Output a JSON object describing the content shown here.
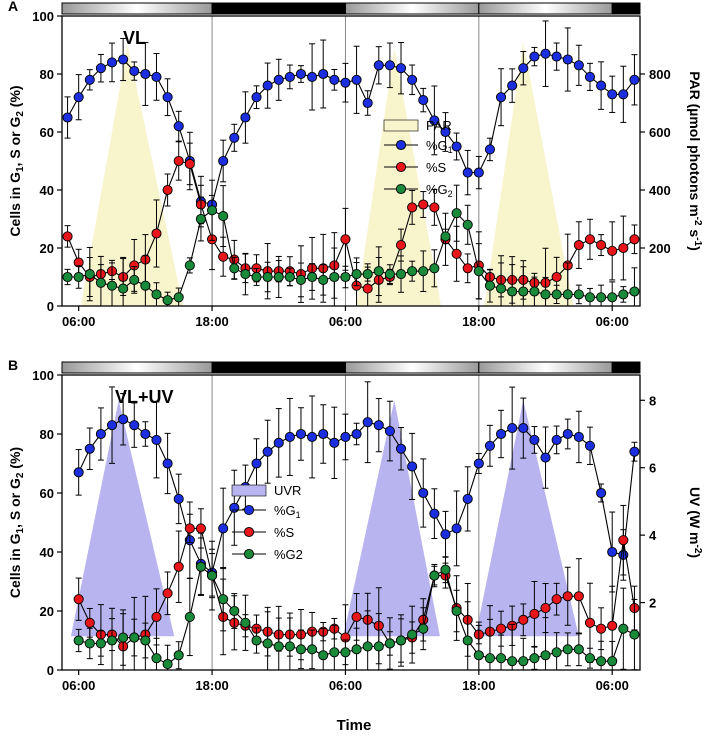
{
  "figure": {
    "xlabel": "Time"
  },
  "chart_data": [
    {
      "panel_label": "A",
      "type": "line",
      "title": "VL",
      "ylabel": "Cells in G1, S or G2 (%)",
      "ylabel_sub": "1",
      "ylabel_sub2": "2",
      "y2label": "PAR (µmol photons m-2 s-1)",
      "y2label_pre": "PAR (µmol photons m",
      "y2label_sup1": "-2",
      "y2label_mid": " s",
      "y2label_sup2": "-1",
      "y2label_post": ")",
      "xlim": [
        4.5,
        56.5
      ],
      "ylim": [
        0,
        100
      ],
      "y2lim": [
        0,
        1000
      ],
      "xticks": [
        6,
        18,
        30,
        42,
        54
      ],
      "xtick_labels": [
        "06:00",
        "18:00",
        "06:00",
        "18:00",
        "06:00"
      ],
      "yticks": [
        0,
        20,
        40,
        60,
        80,
        100
      ],
      "y2ticks": [
        200,
        400,
        600,
        800
      ],
      "light_bar": [
        {
          "start": 4.5,
          "end": 18,
          "phase": "light"
        },
        {
          "start": 18,
          "end": 30,
          "phase": "dark"
        },
        {
          "start": 30,
          "end": 42,
          "phase": "light"
        },
        {
          "start": 42,
          "end": 54,
          "phase": "light"
        },
        {
          "start": 54,
          "end": 56.5,
          "phase": "dark"
        }
      ],
      "irradiance": {
        "name": "PAR",
        "color": "#f8f4cc",
        "peaks": [
          {
            "start": 6.2,
            "peak": 10.4,
            "end": 15.4,
            "value": 900
          },
          {
            "start": 31,
            "peak": 34.4,
            "end": 38.6,
            "value": 890
          },
          {
            "start": 42.5,
            "peak": 46,
            "end": 50.5,
            "value": 910
          }
        ]
      },
      "series": [
        {
          "name": "%G1",
          "legend": "%G",
          "legend_sub": "1",
          "color": "#1c2fe0",
          "x": [
            5,
            6,
            7,
            8,
            9,
            10,
            11,
            12,
            13,
            14,
            15,
            16,
            17,
            18,
            19,
            20,
            21,
            22,
            23,
            24,
            25,
            26,
            27,
            28,
            29,
            30,
            31,
            32,
            33,
            34,
            35,
            36,
            37,
            38,
            39,
            40,
            41,
            42,
            43,
            44,
            45,
            46,
            47,
            48,
            49,
            50,
            51,
            52,
            53,
            54,
            55,
            56
          ],
          "y": [
            65,
            72,
            78,
            82,
            84,
            85,
            81,
            80,
            79,
            72,
            62,
            50,
            36,
            35,
            50,
            58,
            65,
            72,
            76,
            78,
            79,
            80,
            79,
            80,
            78,
            77,
            78,
            70,
            83,
            83,
            82,
            78,
            71,
            64,
            60,
            55,
            46,
            46,
            54,
            72,
            76,
            82,
            86,
            87,
            86,
            85,
            83,
            79,
            76,
            73,
            73,
            78
          ]
        },
        {
          "name": "%S",
          "legend": "%S",
          "legend_sub": "",
          "color": "#e8161a",
          "x": [
            5,
            6,
            7,
            8,
            9,
            10,
            11,
            12,
            13,
            14,
            15,
            16,
            17,
            18,
            19,
            20,
            21,
            22,
            23,
            24,
            25,
            26,
            27,
            28,
            29,
            30,
            31,
            32,
            33,
            34,
            35,
            36,
            37,
            38,
            39,
            40,
            41,
            42,
            43,
            44,
            45,
            46,
            47,
            48,
            49,
            50,
            51,
            52,
            53,
            54,
            55,
            56
          ],
          "y": [
            24,
            15,
            10,
            11,
            12,
            10,
            14,
            16,
            25,
            40,
            50,
            49,
            35,
            23,
            17,
            16,
            13,
            13,
            12,
            12,
            12,
            11,
            13,
            13,
            14,
            23,
            7,
            6,
            9,
            10,
            21,
            34,
            35,
            34,
            23,
            18,
            13,
            14,
            10,
            9,
            9,
            9,
            8,
            8,
            10,
            14,
            21,
            23,
            21,
            19,
            20,
            23
          ]
        },
        {
          "name": "%G2",
          "legend": "%G",
          "legend_sub": "2",
          "color": "#19893a",
          "x": [
            5,
            6,
            7,
            8,
            9,
            10,
            11,
            12,
            13,
            14,
            15,
            16,
            17,
            18,
            19,
            20,
            21,
            22,
            23,
            24,
            25,
            26,
            27,
            28,
            29,
            30,
            31,
            32,
            33,
            34,
            35,
            36,
            37,
            38,
            39,
            40,
            41,
            42,
            43,
            44,
            45,
            46,
            47,
            48,
            49,
            50,
            51,
            52,
            53,
            54,
            55,
            56
          ],
          "y": [
            10,
            10,
            11,
            8,
            7,
            6,
            9,
            7,
            4,
            2,
            3,
            14,
            30,
            33,
            31,
            13,
            11,
            10,
            10,
            10,
            10,
            9,
            10,
            9,
            10,
            10,
            11,
            11,
            12,
            11,
            11,
            12,
            12,
            13,
            24,
            32,
            28,
            12,
            7,
            6,
            5,
            5,
            5,
            4,
            4,
            4,
            4,
            3,
            3,
            3,
            4,
            5
          ]
        }
      ],
      "error_bar_typical": 6
    },
    {
      "panel_label": "B",
      "type": "line",
      "title": "VL+UV",
      "ylabel": "Cells in G1, S or G2 (%)",
      "ylabel_sub": "1",
      "ylabel_sub2": "2",
      "y2label": "UV (W m-2)",
      "y2label_pre": "UV (W m",
      "y2label_sup1": "-2",
      "y2label_mid": "",
      "y2label_sup2": "",
      "y2label_post": ")",
      "xlim": [
        4.5,
        56.5
      ],
      "ylim": [
        0,
        100
      ],
      "y2lim": [
        0,
        8.75
      ],
      "xticks": [
        6,
        18,
        30,
        42,
        54
      ],
      "xtick_labels": [
        "06:00",
        "18:00",
        "06:00",
        "18:00",
        "06:00"
      ],
      "yticks": [
        0,
        20,
        40,
        60,
        80,
        100
      ],
      "y2ticks": [
        2,
        4,
        6,
        8
      ],
      "y2_floor": 1,
      "light_bar": [
        {
          "start": 4.5,
          "end": 18,
          "phase": "light"
        },
        {
          "start": 18,
          "end": 30,
          "phase": "dark"
        },
        {
          "start": 30,
          "end": 42,
          "phase": "light"
        },
        {
          "start": 42,
          "end": 54,
          "phase": "light"
        },
        {
          "start": 54,
          "end": 56.5,
          "phase": "dark"
        }
      ],
      "irradiance": {
        "name": "UVR",
        "color": "#b8b4f0",
        "peaks": [
          {
            "start": 5.3,
            "peak": 9.6,
            "end": 14.6,
            "value": 8
          },
          {
            "start": 29.8,
            "peak": 34.4,
            "end": 38.5,
            "value": 8
          },
          {
            "start": 41.7,
            "peak": 46,
            "end": 51,
            "value": 8
          }
        ]
      },
      "series": [
        {
          "name": "%G1",
          "legend": "%G",
          "legend_sub": "1",
          "color": "#1c2fe0",
          "x": [
            6,
            7,
            8,
            9,
            10,
            11,
            12,
            13,
            14,
            15,
            16,
            17,
            18,
            19,
            20,
            21,
            22,
            23,
            24,
            25,
            26,
            27,
            28,
            29,
            30,
            31,
            32,
            33,
            34,
            35,
            36,
            37,
            38,
            39,
            40,
            41,
            42,
            43,
            44,
            45,
            46,
            47,
            48,
            49,
            50,
            51,
            52,
            53,
            54,
            55,
            56
          ],
          "y": [
            67,
            75,
            80,
            83,
            85,
            83,
            80,
            78,
            70,
            58,
            44,
            36,
            33,
            48,
            55,
            62,
            70,
            74,
            77,
            79,
            80,
            79,
            80,
            77,
            79,
            80,
            84,
            83,
            81,
            75,
            69,
            60,
            53,
            46,
            48,
            58,
            70,
            76,
            80,
            82,
            82,
            78,
            72,
            78,
            80,
            79,
            76,
            60,
            40,
            39,
            74
          ]
        },
        {
          "name": "%S",
          "legend": "%S",
          "legend_sub": "",
          "color": "#e8161a",
          "x": [
            6,
            7,
            8,
            9,
            10,
            11,
            12,
            13,
            14,
            15,
            16,
            17,
            18,
            19,
            20,
            21,
            22,
            23,
            24,
            25,
            26,
            27,
            28,
            29,
            30,
            31,
            32,
            33,
            34,
            35,
            36,
            37,
            38,
            39,
            40,
            41,
            42,
            43,
            44,
            45,
            46,
            47,
            48,
            49,
            50,
            51,
            52,
            53,
            54,
            55,
            56
          ],
          "y": [
            24,
            16,
            12,
            12,
            8,
            11,
            12,
            18,
            26,
            35,
            48,
            48,
            32,
            18,
            16,
            15,
            14,
            13,
            12,
            12,
            12,
            13,
            13,
            14,
            11,
            18,
            17,
            15,
            9,
            10,
            11,
            17,
            32,
            32,
            21,
            17,
            12,
            13,
            14,
            15,
            17,
            19,
            21,
            24,
            25,
            25,
            16,
            14,
            15,
            44,
            21
          ]
        },
        {
          "name": "%G2",
          "legend": "%G2",
          "legend_sub": "",
          "color": "#19893a",
          "x": [
            6,
            7,
            8,
            9,
            10,
            11,
            12,
            13,
            14,
            15,
            16,
            17,
            18,
            19,
            20,
            21,
            22,
            23,
            24,
            25,
            26,
            27,
            28,
            29,
            30,
            31,
            32,
            33,
            34,
            35,
            36,
            37,
            38,
            39,
            40,
            41,
            42,
            43,
            44,
            45,
            46,
            47,
            48,
            49,
            50,
            51,
            52,
            53,
            54,
            55,
            56
          ],
          "y": [
            10,
            9,
            9,
            10,
            11,
            11,
            10,
            4,
            2,
            5,
            18,
            35,
            32,
            24,
            20,
            16,
            10,
            9,
            8,
            8,
            7,
            7,
            5,
            6,
            6,
            7,
            8,
            8,
            9,
            10,
            12,
            14,
            32,
            34,
            20,
            10,
            5,
            4,
            4,
            3,
            3,
            4,
            5,
            6,
            7,
            7,
            4,
            3,
            3,
            14,
            12
          ]
        }
      ],
      "error_bar_typical": 7
    }
  ]
}
